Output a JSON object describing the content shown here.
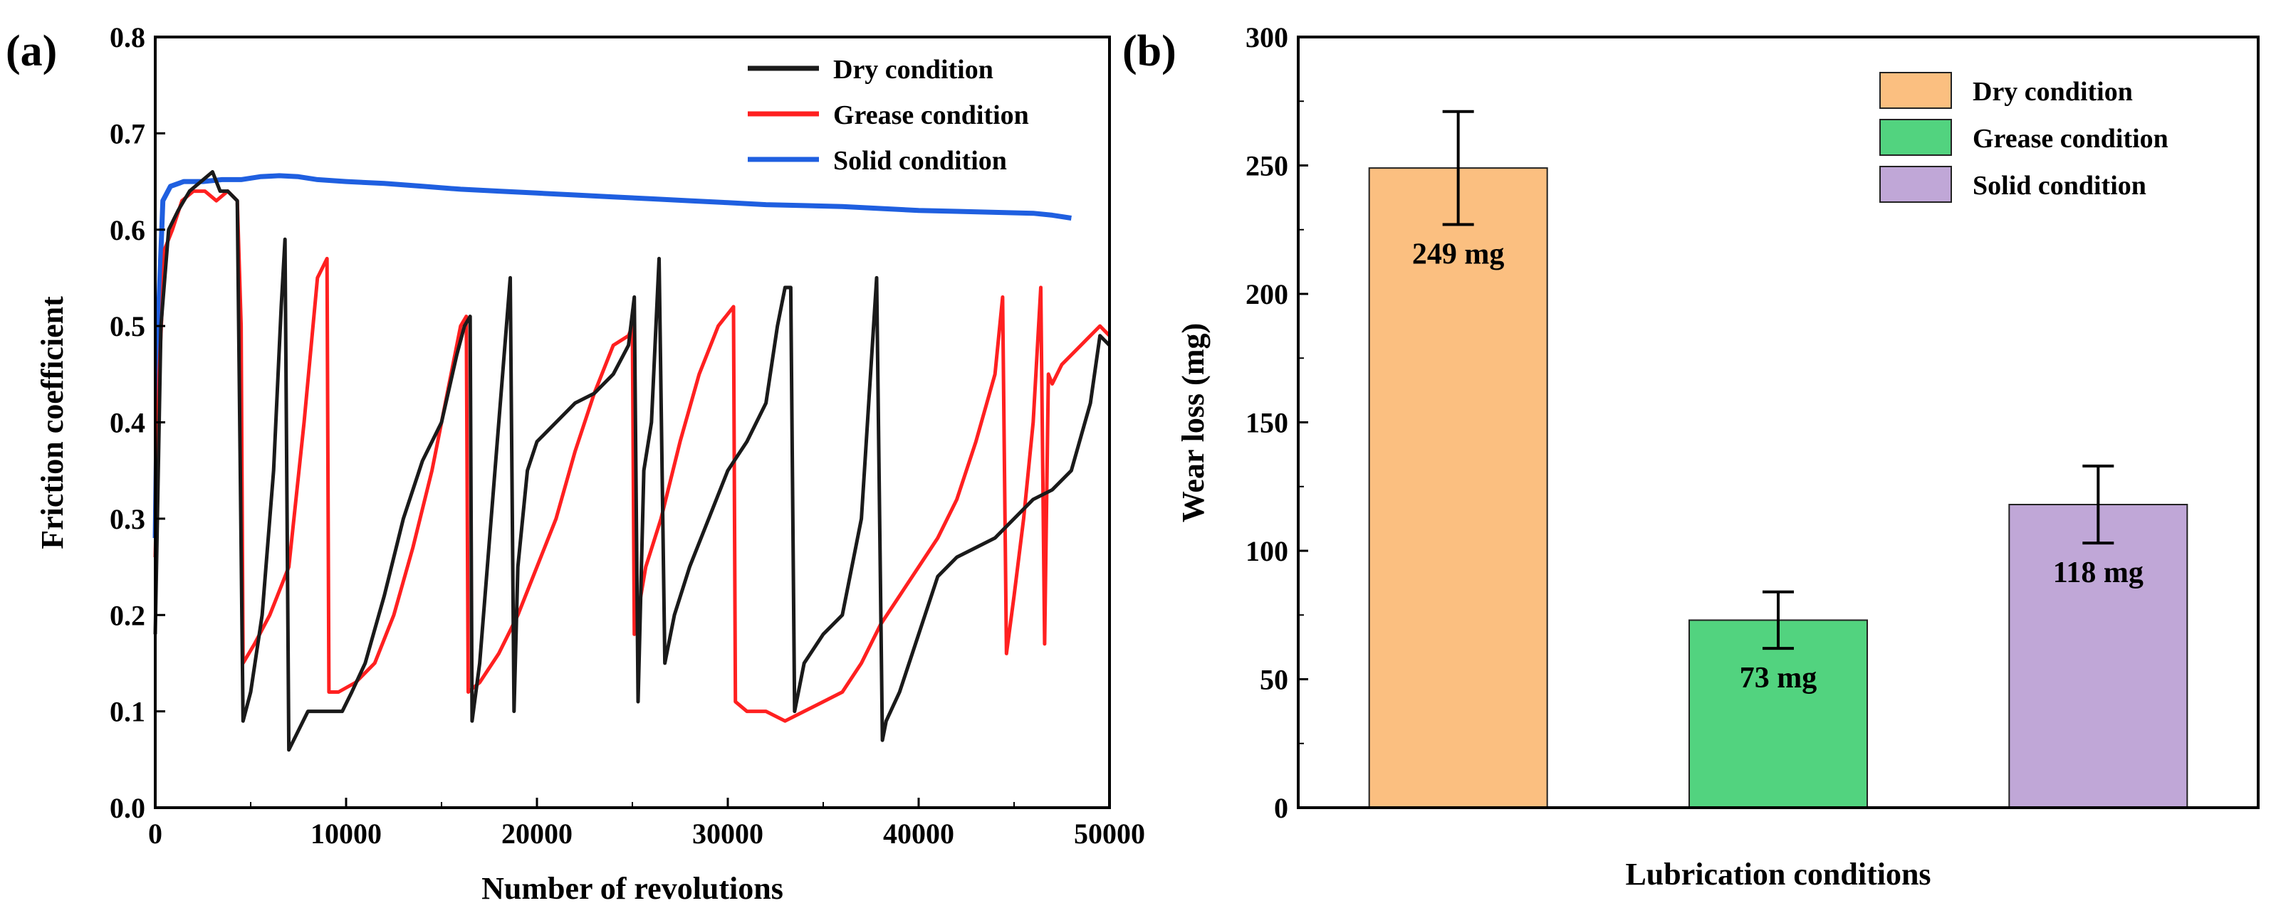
{
  "colors": {
    "dry_line": "#1a1a1a",
    "grease_line": "#ff2020",
    "solid_line": "#1f5fe0",
    "dry_bar": "#fbbf80",
    "grease_bar": "#52d37f",
    "solid_bar": "#c0a7d7"
  },
  "chart_data": [
    {
      "panel_label": "(a)",
      "type": "line",
      "title": "",
      "xlabel": "Number of revolutions",
      "ylabel": "Friction coefficient",
      "xlim": [
        0,
        50000
      ],
      "ylim": [
        0.0,
        0.8
      ],
      "xticks": [
        "0",
        "10000",
        "20000",
        "30000",
        "40000",
        "50000"
      ],
      "yticks": [
        "0.0",
        "0.1",
        "0.2",
        "0.3",
        "0.4",
        "0.5",
        "0.6",
        "0.7",
        "0.8"
      ],
      "legend_position": "top-right",
      "series": [
        {
          "name": "Dry condition",
          "color": "#1a1a1a",
          "x": [
            0,
            300,
            700,
            1200,
            1800,
            2400,
            3000,
            3400,
            3800,
            4300,
            4600,
            5000,
            5600,
            6200,
            6600,
            6800,
            7000,
            7500,
            8000,
            9000,
            9800,
            10300,
            11000,
            12000,
            13000,
            14000,
            15000,
            15800,
            16200,
            16500,
            16600,
            17000,
            17600,
            18200,
            18600,
            18800,
            19000,
            19500,
            20000,
            21000,
            22000,
            23000,
            24000,
            24800,
            25100,
            25300,
            25600,
            26000,
            26400,
            26700,
            27200,
            28000,
            29000,
            30000,
            31000,
            32000,
            32600,
            33000,
            33300,
            33500,
            34000,
            35000,
            36000,
            37000,
            37800,
            38100,
            38300,
            39000,
            40000,
            41000,
            42000,
            43000,
            44000,
            45000,
            46000,
            47000,
            48000,
            49000,
            49500,
            50000
          ],
          "y": [
            0.18,
            0.5,
            0.6,
            0.62,
            0.64,
            0.65,
            0.66,
            0.64,
            0.64,
            0.63,
            0.09,
            0.12,
            0.2,
            0.35,
            0.52,
            0.59,
            0.06,
            0.08,
            0.1,
            0.1,
            0.1,
            0.12,
            0.15,
            0.22,
            0.3,
            0.36,
            0.4,
            0.47,
            0.5,
            0.51,
            0.09,
            0.15,
            0.3,
            0.45,
            0.55,
            0.1,
            0.25,
            0.35,
            0.38,
            0.4,
            0.42,
            0.43,
            0.45,
            0.48,
            0.53,
            0.11,
            0.35,
            0.4,
            0.57,
            0.15,
            0.2,
            0.25,
            0.3,
            0.35,
            0.38,
            0.42,
            0.5,
            0.54,
            0.54,
            0.1,
            0.15,
            0.18,
            0.2,
            0.3,
            0.55,
            0.07,
            0.09,
            0.12,
            0.18,
            0.24,
            0.26,
            0.27,
            0.28,
            0.3,
            0.32,
            0.33,
            0.35,
            0.42,
            0.49,
            0.48
          ]
        },
        {
          "name": "Grease condition",
          "color": "#ff2020",
          "x": [
            0,
            200,
            500,
            900,
            1400,
            2000,
            2600,
            3200,
            3800,
            4300,
            4500,
            4600,
            5200,
            6000,
            7000,
            7800,
            8500,
            9000,
            9100,
            9600,
            10500,
            11500,
            12500,
            13500,
            14500,
            15500,
            16000,
            16300,
            16400,
            17000,
            18000,
            19000,
            20000,
            21000,
            22000,
            23000,
            24000,
            24800,
            25000,
            25100,
            25700,
            26500,
            27500,
            28500,
            29500,
            30300,
            30400,
            31000,
            32000,
            33000,
            34000,
            35000,
            36000,
            37000,
            38000,
            39000,
            40000,
            41000,
            42000,
            43000,
            44000,
            44400,
            44600,
            45000,
            45500,
            46000,
            46400,
            46600,
            46800,
            47000,
            47500,
            48500,
            49500,
            50000
          ],
          "y": [
            0.26,
            0.45,
            0.58,
            0.6,
            0.63,
            0.64,
            0.64,
            0.63,
            0.64,
            0.63,
            0.5,
            0.15,
            0.17,
            0.2,
            0.25,
            0.4,
            0.55,
            0.57,
            0.12,
            0.12,
            0.13,
            0.15,
            0.2,
            0.27,
            0.35,
            0.45,
            0.5,
            0.51,
            0.12,
            0.13,
            0.16,
            0.2,
            0.25,
            0.3,
            0.37,
            0.43,
            0.48,
            0.49,
            0.5,
            0.18,
            0.25,
            0.3,
            0.38,
            0.45,
            0.5,
            0.52,
            0.11,
            0.1,
            0.1,
            0.09,
            0.1,
            0.11,
            0.12,
            0.15,
            0.19,
            0.22,
            0.25,
            0.28,
            0.32,
            0.38,
            0.45,
            0.53,
            0.16,
            0.22,
            0.3,
            0.4,
            0.54,
            0.17,
            0.45,
            0.44,
            0.46,
            0.48,
            0.5,
            0.49
          ]
        },
        {
          "name": "Solid condition",
          "color": "#1f5fe0",
          "x": [
            0,
            150,
            400,
            800,
            1500,
            2500,
            3500,
            4500,
            5500,
            6500,
            7500,
            8500,
            10000,
            12000,
            14000,
            16000,
            18000,
            20000,
            22000,
            24000,
            26000,
            28000,
            30000,
            32000,
            34000,
            36000,
            38000,
            40000,
            42000,
            44000,
            46000,
            47000,
            48000
          ],
          "y": [
            0.28,
            0.5,
            0.63,
            0.645,
            0.65,
            0.65,
            0.652,
            0.652,
            0.655,
            0.656,
            0.655,
            0.652,
            0.65,
            0.648,
            0.645,
            0.642,
            0.64,
            0.638,
            0.636,
            0.634,
            0.632,
            0.63,
            0.628,
            0.626,
            0.625,
            0.624,
            0.622,
            0.62,
            0.619,
            0.618,
            0.617,
            0.615,
            0.612
          ]
        }
      ]
    },
    {
      "panel_label": "(b)",
      "type": "bar",
      "title": "",
      "xlabel": "Lubrication conditions",
      "ylabel": "Wear loss (mg)",
      "ylim": [
        0,
        300
      ],
      "yticks": [
        "0",
        "50",
        "100",
        "150",
        "200",
        "250",
        "300"
      ],
      "legend_position": "top-right",
      "categories": [
        "Dry condition",
        "Grease condition",
        "Solid condition"
      ],
      "values": [
        249,
        73,
        118
      ],
      "errors": [
        22,
        11,
        15
      ],
      "data_labels": [
        "249 mg",
        "73 mg",
        "118 mg"
      ],
      "colors": [
        "#fbbf80",
        "#52d37f",
        "#c0a7d7"
      ]
    }
  ]
}
